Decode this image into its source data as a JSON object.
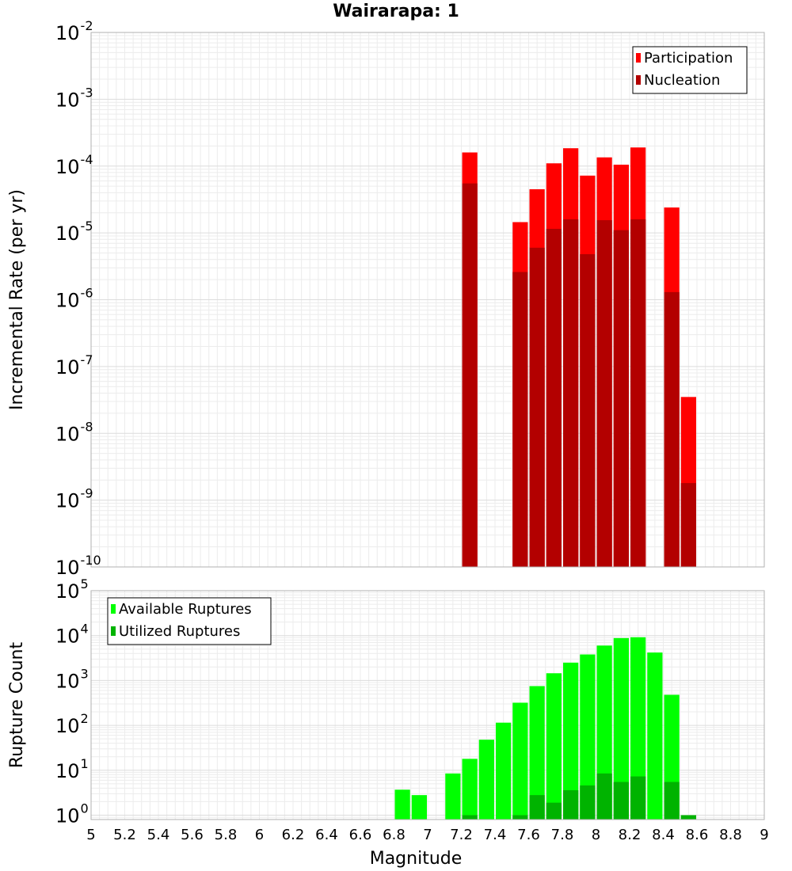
{
  "chart_data": [
    {
      "type": "bar",
      "id": "rate",
      "title": "Wairarapa: 1",
      "ylabel": "Incremental Rate (per yr)",
      "yscale": "log",
      "ylim": [
        1e-10,
        0.01
      ],
      "xlim": [
        5,
        9
      ],
      "ytick_exponents": [
        "-10",
        "-9",
        "-8",
        "-7",
        "-6",
        "-5",
        "-4",
        "-3",
        "-2"
      ],
      "ytick_base": "10",
      "legend_position": "top-right",
      "grid": true,
      "series": [
        {
          "name": "Participation",
          "color": "#ff0000",
          "points": [
            {
              "x": 7.25,
              "y": 0.00016
            },
            {
              "x": 7.55,
              "y": 1.45e-05
            },
            {
              "x": 7.65,
              "y": 4.5e-05
            },
            {
              "x": 7.75,
              "y": 0.00011
            },
            {
              "x": 7.85,
              "y": 0.000185
            },
            {
              "x": 7.95,
              "y": 7.2e-05
            },
            {
              "x": 8.05,
              "y": 0.000135
            },
            {
              "x": 8.15,
              "y": 0.000105
            },
            {
              "x": 8.25,
              "y": 0.00019
            },
            {
              "x": 8.45,
              "y": 2.4e-05
            },
            {
              "x": 8.55,
              "y": 3.5e-08
            }
          ]
        },
        {
          "name": "Nucleation",
          "color": "#b30000",
          "points": [
            {
              "x": 7.25,
              "y": 5.5e-05
            },
            {
              "x": 7.55,
              "y": 2.6e-06
            },
            {
              "x": 7.65,
              "y": 6e-06
            },
            {
              "x": 7.75,
              "y": 1.15e-05
            },
            {
              "x": 7.85,
              "y": 1.6e-05
            },
            {
              "x": 7.95,
              "y": 4.8e-06
            },
            {
              "x": 8.05,
              "y": 1.55e-05
            },
            {
              "x": 8.15,
              "y": 1.1e-05
            },
            {
              "x": 8.25,
              "y": 1.6e-05
            },
            {
              "x": 8.45,
              "y": 1.3e-06
            },
            {
              "x": 8.55,
              "y": 1.8e-09
            }
          ]
        }
      ]
    },
    {
      "type": "bar",
      "id": "count",
      "xlabel": "Magnitude",
      "ylabel": "Rupture Count",
      "yscale": "log",
      "ylim": [
        0.8,
        100000.0
      ],
      "xlim": [
        5,
        9
      ],
      "ytick_exponents": [
        "0",
        "1",
        "2",
        "3",
        "4",
        "5"
      ],
      "ytick_base": "10",
      "xticks": [
        "5",
        "5.2",
        "5.4",
        "5.6",
        "5.8",
        "6",
        "6.2",
        "6.4",
        "6.6",
        "6.8",
        "7",
        "7.2",
        "7.4",
        "7.6",
        "7.8",
        "8",
        "8.2",
        "8.4",
        "8.6",
        "8.8",
        "9"
      ],
      "legend_position": "top-left",
      "grid": true,
      "series": [
        {
          "name": "Available Ruptures",
          "color": "#00ff00",
          "points": [
            {
              "x": 6.85,
              "y": 3.7
            },
            {
              "x": 6.95,
              "y": 2.8
            },
            {
              "x": 7.15,
              "y": 8.5
            },
            {
              "x": 7.25,
              "y": 18
            },
            {
              "x": 7.35,
              "y": 48
            },
            {
              "x": 7.45,
              "y": 115
            },
            {
              "x": 7.55,
              "y": 320
            },
            {
              "x": 7.65,
              "y": 750
            },
            {
              "x": 7.75,
              "y": 1450
            },
            {
              "x": 7.85,
              "y": 2500
            },
            {
              "x": 7.95,
              "y": 3800
            },
            {
              "x": 8.05,
              "y": 6000
            },
            {
              "x": 8.15,
              "y": 8800
            },
            {
              "x": 8.25,
              "y": 9200
            },
            {
              "x": 8.35,
              "y": 4200
            },
            {
              "x": 8.45,
              "y": 480
            },
            {
              "x": 8.55,
              "y": 1
            }
          ]
        },
        {
          "name": "Utilized Ruptures",
          "color": "#00b300",
          "points": [
            {
              "x": 7.25,
              "y": 1
            },
            {
              "x": 7.55,
              "y": 1
            },
            {
              "x": 7.65,
              "y": 2.8
            },
            {
              "x": 7.75,
              "y": 1.9
            },
            {
              "x": 7.85,
              "y": 3.6
            },
            {
              "x": 7.95,
              "y": 4.6
            },
            {
              "x": 8.05,
              "y": 8.5
            },
            {
              "x": 8.15,
              "y": 5.5
            },
            {
              "x": 8.25,
              "y": 7.3
            },
            {
              "x": 8.45,
              "y": 5.5
            },
            {
              "x": 8.55,
              "y": 1
            }
          ]
        }
      ]
    }
  ]
}
